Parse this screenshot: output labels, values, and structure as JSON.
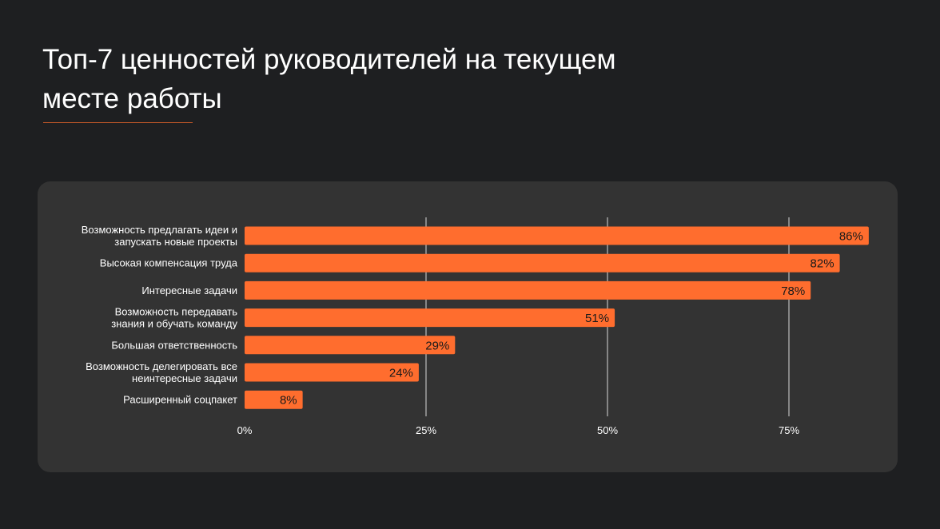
{
  "title": [
    "Топ-7 ценностей руководителей на текущем",
    "месте работы"
  ],
  "colors": {
    "background": "#1e1f21",
    "panel": "#333333",
    "bar": "#ff6d2e",
    "accent_rule": "#c85a28",
    "text": "#ffffff",
    "value_label": "#1a1a1a",
    "grid": "#bdbdbd"
  },
  "chart_data": {
    "type": "bar",
    "orientation": "horizontal",
    "categories": [
      [
        "Возможность предлагать идеи и",
        "запускать новые проекты"
      ],
      [
        "Высокая компенсация труда"
      ],
      [
        "Интересные задачи"
      ],
      [
        "Возможность передавать",
        "знания и обучать команду"
      ],
      [
        "Большая ответственность"
      ],
      [
        "Возможность делегировать все",
        "неинтересные задачи"
      ],
      [
        "Расширенный соцпакет"
      ]
    ],
    "values": [
      86,
      82,
      78,
      51,
      29,
      24,
      8
    ],
    "value_labels": [
      "86%",
      "82%",
      "78%",
      "51%",
      "29%",
      "24%",
      "8%"
    ],
    "xlim": [
      0,
      86
    ],
    "xticks": [
      0,
      25,
      50,
      75
    ],
    "xtick_labels": [
      "0%",
      "25%",
      "50%",
      "75%"
    ],
    "grid": "vertical",
    "legend": "none"
  }
}
